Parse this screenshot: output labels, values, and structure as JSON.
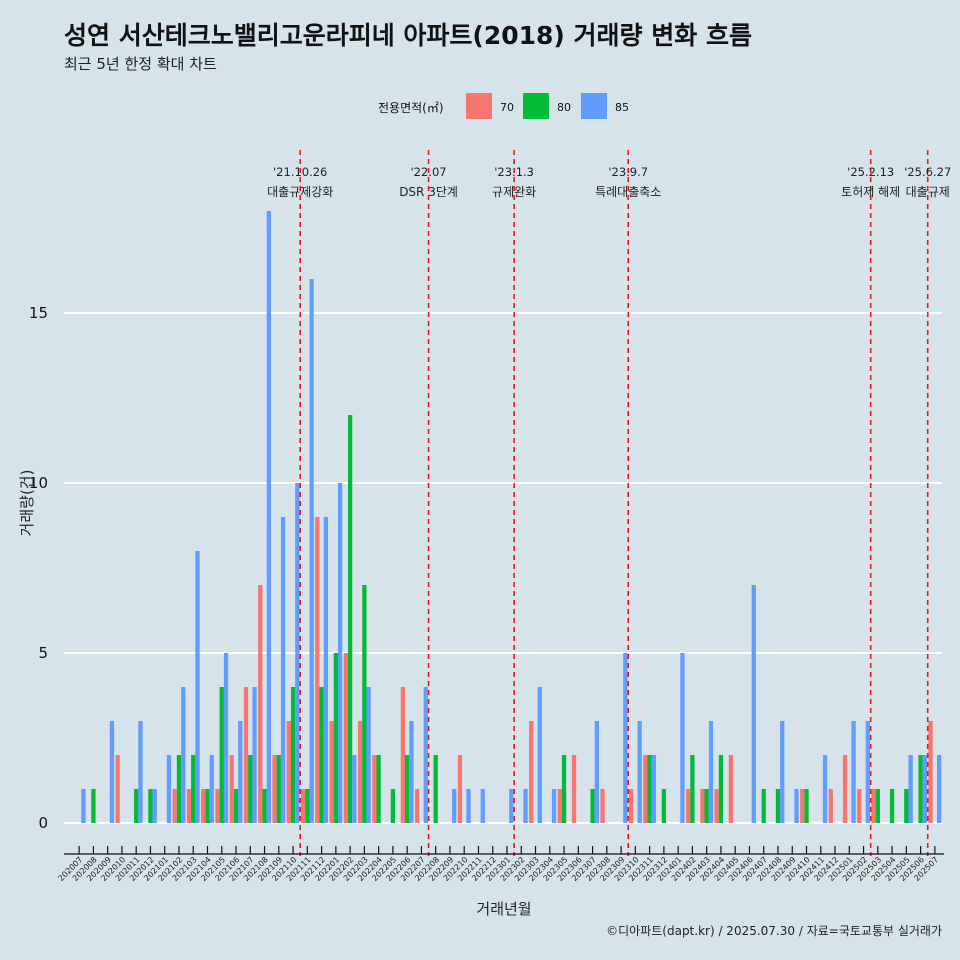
{
  "title": "성연 서산테크노밸리고운라피네 아파트(2018) 거래량 변화 흐름",
  "subtitle": "최근 5년 한정 확대 차트",
  "caption": "©디아파트(dapt.kr) / 2025.07.30 / 자료=국토교통부 실거래가",
  "colors": {
    "70": "#f8766d",
    "80": "#00ba38",
    "85": "#619cff",
    "event_line": "#e41a1c",
    "background": "#d6e3ea",
    "grid": "#ffffff"
  },
  "chart_data": {
    "type": "bar",
    "xlabel": "거래년월",
    "ylabel": "거래량(건)",
    "legend": {
      "title": "전용면적(㎡)",
      "position": "top",
      "entries": [
        "70",
        "80",
        "85"
      ]
    },
    "grid": true,
    "ylim": [
      0,
      18
    ],
    "yticks": [
      0,
      5,
      10,
      15
    ],
    "categories": [
      "202007",
      "202008",
      "202009",
      "202010",
      "202011",
      "202012",
      "202101",
      "202102",
      "202103",
      "202104",
      "202105",
      "202106",
      "202107",
      "202108",
      "202109",
      "202110",
      "202111",
      "202112",
      "202201",
      "202202",
      "202203",
      "202204",
      "202205",
      "202206",
      "202207",
      "202208",
      "202209",
      "202210",
      "202211",
      "202212",
      "202301",
      "202302",
      "202303",
      "202304",
      "202305",
      "202306",
      "202307",
      "202308",
      "202309",
      "202310",
      "202311",
      "202312",
      "202401",
      "202402",
      "202403",
      "202404",
      "202405",
      "202406",
      "202407",
      "202408",
      "202409",
      "202410",
      "202411",
      "202412",
      "202501",
      "202502",
      "202503",
      "202504",
      "202505",
      "202506",
      "202507"
    ],
    "series": [
      {
        "name": "70",
        "values": [
          0,
          0,
          0,
          2,
          0,
          0,
          0,
          1,
          1,
          1,
          1,
          2,
          4,
          7,
          2,
          3,
          1,
          9,
          3,
          5,
          3,
          2,
          0,
          4,
          1,
          0,
          0,
          2,
          0,
          0,
          0,
          0,
          3,
          0,
          1,
          2,
          0,
          1,
          0,
          1,
          2,
          0,
          0,
          1,
          1,
          1,
          2,
          0,
          0,
          0,
          0,
          1,
          0,
          1,
          2,
          1,
          1,
          0,
          0,
          0,
          3
        ]
      },
      {
        "name": "80",
        "values": [
          0,
          1,
          0,
          0,
          1,
          1,
          0,
          2,
          2,
          1,
          4,
          1,
          2,
          1,
          2,
          4,
          1,
          4,
          5,
          12,
          7,
          2,
          1,
          2,
          0,
          2,
          0,
          0,
          0,
          0,
          0,
          0,
          0,
          0,
          2,
          0,
          1,
          0,
          0,
          0,
          2,
          1,
          0,
          2,
          1,
          2,
          0,
          0,
          1,
          1,
          0,
          1,
          0,
          0,
          0,
          0,
          1,
          1,
          1,
          2,
          0
        ]
      },
      {
        "name": "85",
        "values": [
          1,
          0,
          3,
          0,
          3,
          1,
          2,
          4,
          8,
          2,
          5,
          3,
          4,
          18,
          9,
          10,
          16,
          9,
          10,
          2,
          4,
          0,
          0,
          3,
          4,
          0,
          1,
          1,
          1,
          0,
          1,
          1,
          4,
          1,
          0,
          0,
          3,
          0,
          5,
          3,
          2,
          0,
          5,
          0,
          3,
          0,
          0,
          7,
          0,
          3,
          1,
          0,
          2,
          0,
          3,
          3,
          0,
          0,
          2,
          2,
          2
        ]
      }
    ],
    "events": [
      {
        "after": "202110",
        "date": "'21.10.26",
        "label": "대출규제강화"
      },
      {
        "after": "202207",
        "date": "'22.07",
        "label": "DSR 3단계"
      },
      {
        "after": "202301",
        "date": "'23.1.3",
        "label": "규제완화"
      },
      {
        "after": "202309",
        "date": "'23.9.7",
        "label": "특례대출축소"
      },
      {
        "after": "202502",
        "date": "'25.2.13",
        "label": "토허제 해제"
      },
      {
        "after": "202506",
        "date": "'25.6.27",
        "label": "대출규제"
      }
    ]
  }
}
